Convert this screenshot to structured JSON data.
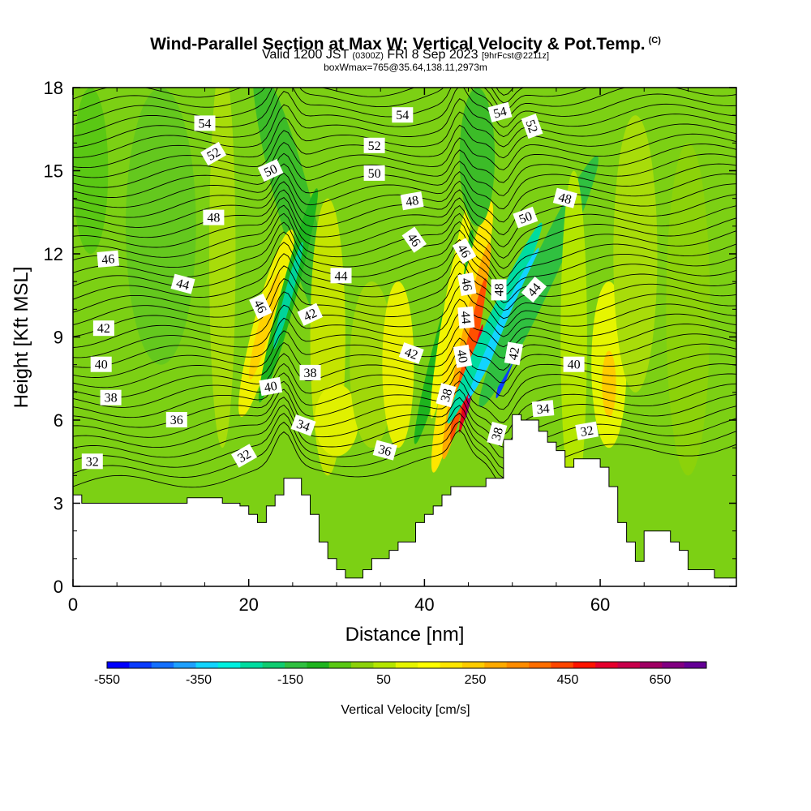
{
  "title": {
    "main": "Wind-Parallel Section at Max W: Vertical Velocity & Pot.Temp.",
    "copyright": "(C)",
    "valid_a": "Valid 1200 JST",
    "valid_z": "(0300Z)",
    "valid_b": "FRI 8 Sep 2023",
    "valid_fc": "[9hrFcst@2211z]",
    "box": "boxWmax=765@35.64,138.11,2973m"
  },
  "chart_data": {
    "type": "heatmap",
    "xlabel": "Distance [nm]",
    "ylabel": "Height [Kft MSL]",
    "xlim": [
      0,
      75.5
    ],
    "ylim": [
      0,
      18
    ],
    "x_ticks": [
      0,
      20,
      40,
      60
    ],
    "y_ticks": [
      0,
      3,
      6,
      9,
      12,
      15,
      18
    ],
    "colorbar": {
      "label": "Vertical Velocity [cm/s]",
      "tick_labels": [
        "-550",
        "-350",
        "-150",
        "50",
        "250",
        "450",
        "650"
      ],
      "colors": [
        "#0000ff",
        "#0a3cff",
        "#1470ff",
        "#1ea0ff",
        "#12d4ff",
        "#00f0e0",
        "#00dca0",
        "#10cc70",
        "#30c040",
        "#1eb41e",
        "#5ac814",
        "#8cd20a",
        "#b4e600",
        "#e6f500",
        "#ffff00",
        "#ffe600",
        "#ffcc00",
        "#ffaa00",
        "#ff8c00",
        "#ff6e00",
        "#ff4600",
        "#ff1400",
        "#e6002d",
        "#c8004b",
        "#a00064",
        "#820082",
        "#640096"
      ]
    },
    "terrain": [
      [
        0,
        3.3
      ],
      [
        1,
        3.3
      ],
      [
        1,
        3.0
      ],
      [
        13,
        3.0
      ],
      [
        13,
        3.2
      ],
      [
        17,
        3.2
      ],
      [
        17,
        3.0
      ],
      [
        19,
        3.0
      ],
      [
        19,
        2.9
      ],
      [
        20,
        2.9
      ],
      [
        20,
        2.6
      ],
      [
        21,
        2.6
      ],
      [
        21,
        2.3
      ],
      [
        22,
        2.3
      ],
      [
        22,
        2.9
      ],
      [
        23,
        2.9
      ],
      [
        23,
        3.3
      ],
      [
        24,
        3.3
      ],
      [
        24,
        3.9
      ],
      [
        26,
        3.9
      ],
      [
        26,
        3.3
      ],
      [
        27,
        3.3
      ],
      [
        27,
        2.6
      ],
      [
        28,
        2.6
      ],
      [
        28,
        1.6
      ],
      [
        29,
        1.6
      ],
      [
        29,
        1.0
      ],
      [
        30,
        1.0
      ],
      [
        30,
        0.6
      ],
      [
        31,
        0.6
      ],
      [
        31,
        0.3
      ],
      [
        33,
        0.3
      ],
      [
        33,
        0.6
      ],
      [
        34,
        0.6
      ],
      [
        34,
        1.0
      ],
      [
        36,
        1.0
      ],
      [
        36,
        1.3
      ],
      [
        37,
        1.3
      ],
      [
        37,
        1.6
      ],
      [
        39,
        1.6
      ],
      [
        39,
        2.3
      ],
      [
        40,
        2.3
      ],
      [
        40,
        2.6
      ],
      [
        41,
        2.6
      ],
      [
        41,
        2.9
      ],
      [
        42,
        2.9
      ],
      [
        42,
        3.3
      ],
      [
        43,
        3.3
      ],
      [
        43,
        3.6
      ],
      [
        44,
        3.6
      ],
      [
        44,
        3.6
      ],
      [
        47,
        3.6
      ],
      [
        47,
        3.9
      ],
      [
        49,
        3.9
      ],
      [
        49,
        5.3
      ],
      [
        50,
        5.3
      ],
      [
        50,
        6.2
      ],
      [
        51,
        6.2
      ],
      [
        51,
        6.0
      ],
      [
        53,
        6.0
      ],
      [
        53,
        5.6
      ],
      [
        54,
        5.6
      ],
      [
        54,
        5.2
      ],
      [
        55,
        5.2
      ],
      [
        55,
        4.9
      ],
      [
        56,
        4.9
      ],
      [
        56,
        4.3
      ],
      [
        57,
        4.3
      ],
      [
        57,
        4.6
      ],
      [
        60,
        4.6
      ],
      [
        60,
        4.3
      ],
      [
        61,
        4.3
      ],
      [
        61,
        3.6
      ],
      [
        62,
        3.6
      ],
      [
        62,
        2.3
      ],
      [
        63,
        2.3
      ],
      [
        63,
        1.6
      ],
      [
        64,
        1.6
      ],
      [
        64,
        0.9
      ],
      [
        65,
        0.9
      ],
      [
        65,
        2.0
      ],
      [
        68,
        2.0
      ],
      [
        68,
        1.6
      ],
      [
        69,
        1.6
      ],
      [
        69,
        1.3
      ],
      [
        70,
        1.3
      ],
      [
        70,
        0.6
      ],
      [
        73,
        0.6
      ],
      [
        73,
        0.3
      ],
      [
        75.5,
        0.3
      ]
    ],
    "contour_labels": [
      {
        "text": "54",
        "x": 15,
        "y": 16.7,
        "angle": 0
      },
      {
        "text": "52",
        "x": 16,
        "y": 15.6,
        "angle": -30
      },
      {
        "text": "50",
        "x": 22.5,
        "y": 15.0,
        "angle": -25
      },
      {
        "text": "48",
        "x": 16,
        "y": 13.3,
        "angle": 0
      },
      {
        "text": "46",
        "x": 4,
        "y": 11.8,
        "angle": -5
      },
      {
        "text": "44",
        "x": 12.5,
        "y": 10.9,
        "angle": 15
      },
      {
        "text": "42",
        "x": 3.5,
        "y": 9.3,
        "angle": 0
      },
      {
        "text": "40",
        "x": 3.2,
        "y": 8.0,
        "angle": 0
      },
      {
        "text": "38",
        "x": 4.3,
        "y": 6.8,
        "angle": 0
      },
      {
        "text": "36",
        "x": 11.8,
        "y": 6.0,
        "angle": 0
      },
      {
        "text": "32",
        "x": 2.2,
        "y": 4.5,
        "angle": 0
      },
      {
        "text": "46",
        "x": 21.3,
        "y": 10.1,
        "angle": 65
      },
      {
        "text": "42",
        "x": 27,
        "y": 9.8,
        "angle": -25
      },
      {
        "text": "44",
        "x": 30.5,
        "y": 11.2,
        "angle": 0
      },
      {
        "text": "40",
        "x": 22.5,
        "y": 7.2,
        "angle": -10
      },
      {
        "text": "38",
        "x": 27,
        "y": 7.7,
        "angle": 0
      },
      {
        "text": "34",
        "x": 26.2,
        "y": 5.8,
        "angle": 20
      },
      {
        "text": "32",
        "x": 19.5,
        "y": 4.7,
        "angle": -30
      },
      {
        "text": "36",
        "x": 35.5,
        "y": 4.9,
        "angle": 15
      },
      {
        "text": "54",
        "x": 37.5,
        "y": 17.0,
        "angle": 0
      },
      {
        "text": "52",
        "x": 34.3,
        "y": 15.9,
        "angle": 0
      },
      {
        "text": "50",
        "x": 34.3,
        "y": 14.9,
        "angle": 0
      },
      {
        "text": "48",
        "x": 38.6,
        "y": 13.9,
        "angle": -10
      },
      {
        "text": "46",
        "x": 38.8,
        "y": 12.5,
        "angle": 55
      },
      {
        "text": "42",
        "x": 38.5,
        "y": 8.4,
        "angle": 20
      },
      {
        "text": "38",
        "x": 42.5,
        "y": 6.9,
        "angle": -75
      },
      {
        "text": "46",
        "x": 44.5,
        "y": 12.1,
        "angle": 60
      },
      {
        "text": "46",
        "x": 44.8,
        "y": 10.9,
        "angle": 80
      },
      {
        "text": "44",
        "x": 44.7,
        "y": 9.7,
        "angle": 85
      },
      {
        "text": "40",
        "x": 44.3,
        "y": 8.3,
        "angle": 80
      },
      {
        "text": "48",
        "x": 48.5,
        "y": 10.7,
        "angle": -90
      },
      {
        "text": "38",
        "x": 48.3,
        "y": 5.5,
        "angle": -75
      },
      {
        "text": "54",
        "x": 48.6,
        "y": 17.1,
        "angle": -15
      },
      {
        "text": "52",
        "x": 52.2,
        "y": 16.6,
        "angle": 70
      },
      {
        "text": "50",
        "x": 51.5,
        "y": 13.3,
        "angle": -20
      },
      {
        "text": "48",
        "x": 56,
        "y": 14.0,
        "angle": 15
      },
      {
        "text": "44",
        "x": 52.5,
        "y": 10.7,
        "angle": -50
      },
      {
        "text": "42",
        "x": 50.2,
        "y": 8.4,
        "angle": -80
      },
      {
        "text": "40",
        "x": 57,
        "y": 8.0,
        "angle": 0
      },
      {
        "text": "34",
        "x": 53.5,
        "y": 6.4,
        "angle": -5
      },
      {
        "text": "32",
        "x": 58.5,
        "y": 5.6,
        "angle": -10
      }
    ]
  }
}
